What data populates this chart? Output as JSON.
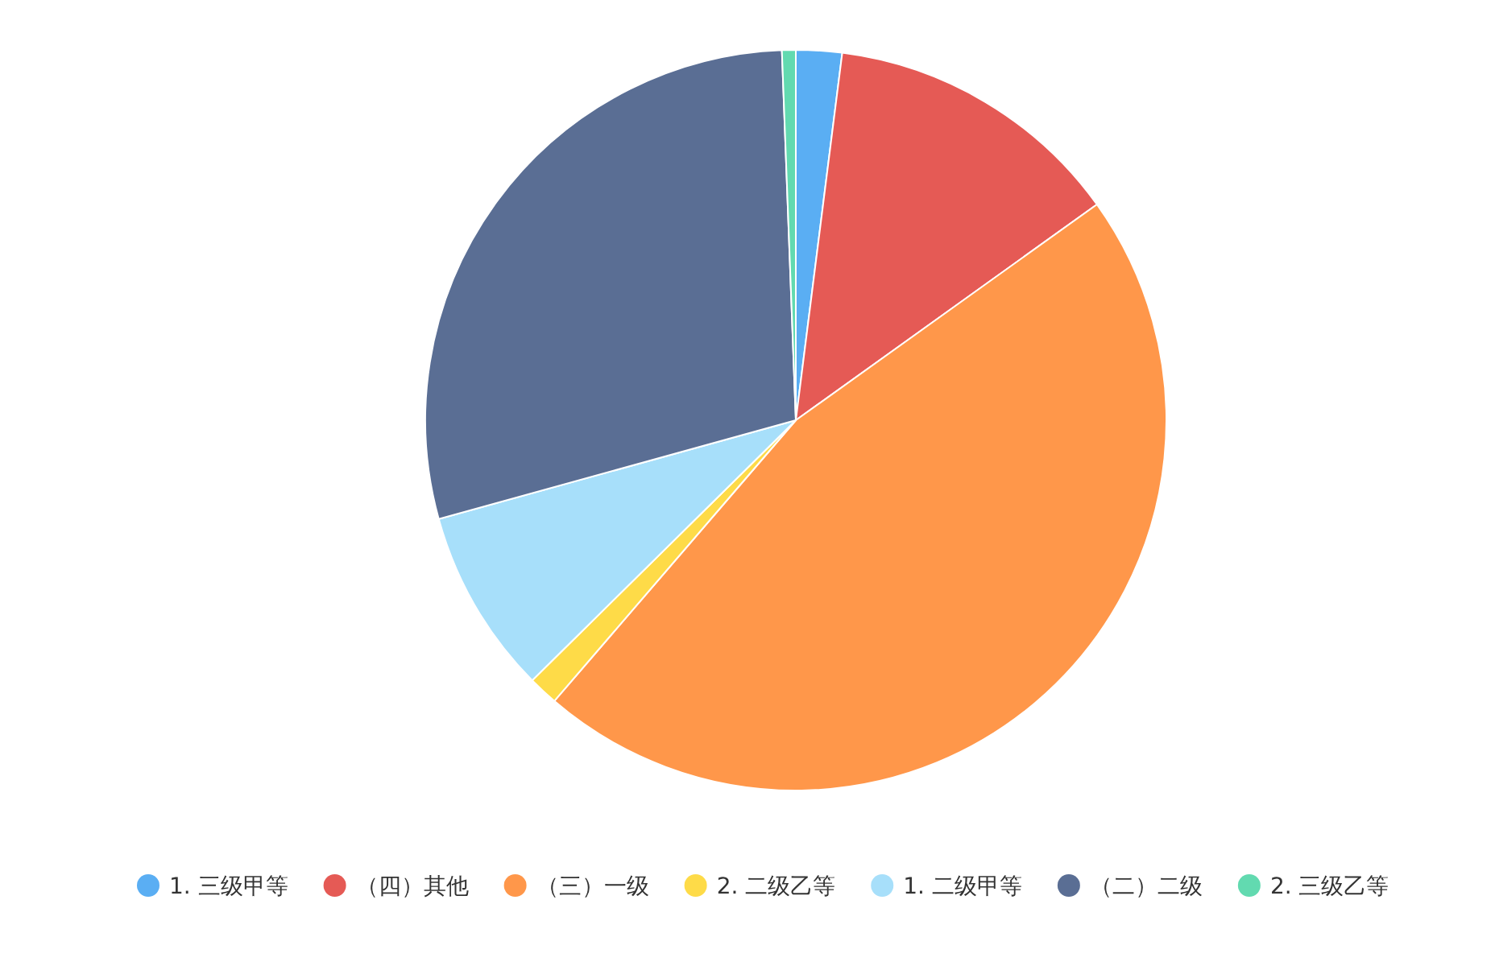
{
  "chart_data": {
    "type": "pie",
    "legend": "bottom",
    "categories": [
      "1. 三级甲等",
      "（四）其他",
      "（三）一级",
      "2. 二级乙等",
      "1. 二级甲等",
      "（二）二级",
      "2. 三级乙等"
    ],
    "values": [
      2.0,
      13.1,
      46.2,
      1.3,
      8.1,
      28.7,
      0.6
    ],
    "colors": [
      "#5aaef3",
      "#e55a55",
      "#ff974a",
      "#fedb48",
      "#a7dffa",
      "#5a6e94",
      "#62dab0"
    ]
  }
}
